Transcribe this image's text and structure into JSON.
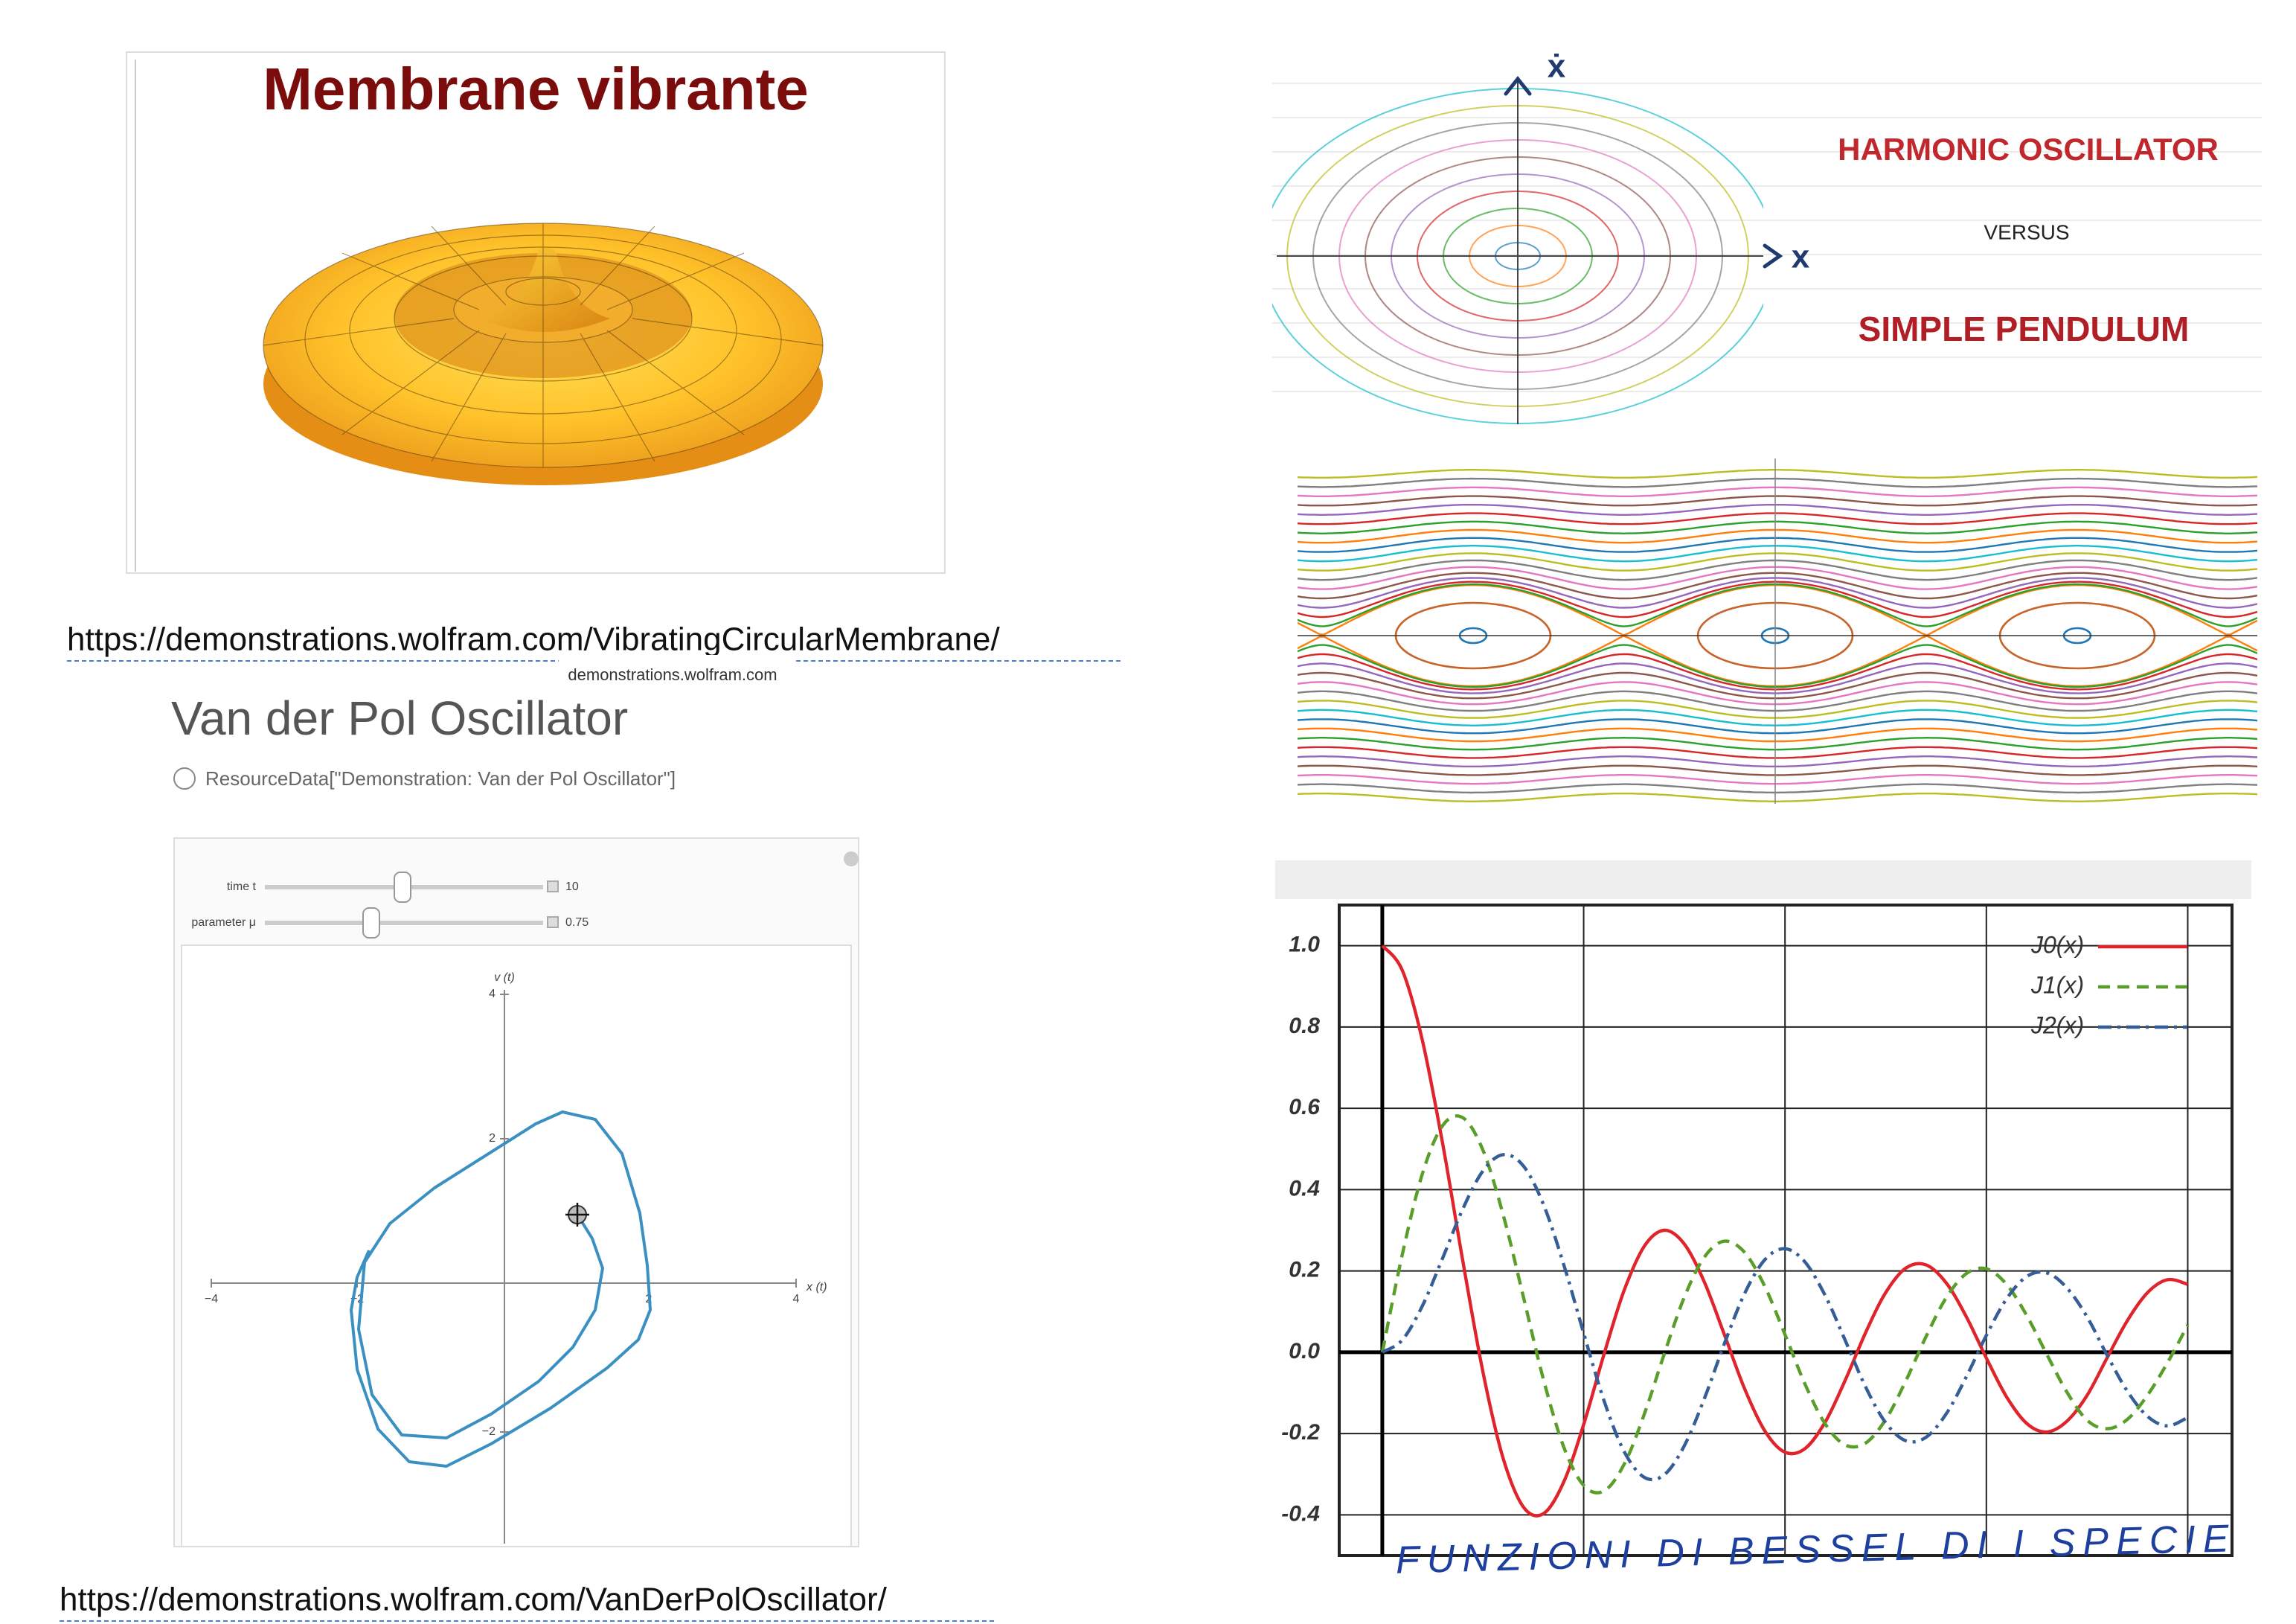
{
  "membrane": {
    "title": "Membrane vibrante",
    "url": "https://demonstrations.wolfram.com/VibratingCircularMembrane/"
  },
  "phase_portrait": {
    "y_label": "ẋ",
    "x_label": "x",
    "title": "HARMONIC OSCILLATOR",
    "connector": "VERSUS",
    "subtitle": "SIMPLE PENDULUM"
  },
  "van_der_pol": {
    "tooltip": "demonstrations.wolfram.com",
    "title": "Van der Pol Oscillator",
    "source": "ResourceData[\"Demonstration: Van der Pol Oscillator\"]",
    "controls": [
      {
        "label": "time t",
        "value": "10"
      },
      {
        "label": "parameter μ",
        "value": "0.75"
      }
    ],
    "plot": {
      "x_label": "x (t)",
      "y_label": "v (t)",
      "x_ticks": [
        "−4",
        "−2",
        "2",
        "4"
      ],
      "y_ticks": [
        "4",
        "2",
        "−2"
      ]
    },
    "url": "https://demonstrations.wolfram.com/VanDerPolOscillator/"
  },
  "chart_data": {
    "type": "line",
    "annotation": "FUNZIONI DI BESSEL DI I SPECIE",
    "x": [
      0,
      0.5,
      1,
      1.5,
      2,
      2.5,
      3,
      3.5,
      4,
      4.5,
      5,
      5.5,
      6,
      6.5,
      7,
      7.5,
      8,
      8.5,
      9,
      9.5,
      10,
      10.5,
      11,
      11.5,
      12,
      12.5,
      13,
      13.5,
      14,
      14.5,
      15,
      15.5,
      16,
      16.5,
      17,
      17.5,
      18,
      18.5,
      19,
      19.5,
      20
    ],
    "series": [
      {
        "name": "J0(x)",
        "color": "#e0242b",
        "linestyle": "solid",
        "values": [
          1,
          0.9385,
          0.7652,
          0.5118,
          0.2239,
          -0.0484,
          -0.2601,
          -0.3801,
          -0.3971,
          -0.3205,
          -0.1776,
          -0.0068,
          0.1506,
          0.2601,
          0.3001,
          0.2663,
          0.1717,
          0.0419,
          -0.0903,
          -0.1939,
          -0.2459,
          -0.2366,
          -0.1712,
          -0.0677,
          0.0477,
          0.1469,
          0.2069,
          0.215,
          0.1711,
          0.0875,
          -0.0142,
          -0.1092,
          -0.1749,
          -0.196,
          -0.1699,
          -0.1061,
          -0.0134,
          0.0775,
          0.1466,
          0.1786,
          0.167
        ]
      },
      {
        "name": "J1(x)",
        "color": "#5a9e2a",
        "linestyle": "dashed",
        "values": [
          0,
          0.2423,
          0.4401,
          0.5579,
          0.5767,
          0.4971,
          0.3391,
          0.1374,
          -0.066,
          -0.2311,
          -0.3276,
          -0.3414,
          -0.2767,
          -0.1538,
          -0.0047,
          0.1352,
          0.2346,
          0.2731,
          0.2453,
          0.1613,
          0.0435,
          -0.0789,
          -0.1768,
          -0.2284,
          -0.2234,
          -0.1655,
          -0.0703,
          0.038,
          0.1334,
          0.1934,
          0.2051,
          0.1672,
          0.0904,
          -0.005,
          -0.0977,
          -0.1672,
          -0.188,
          -0.1655,
          -0.1057,
          -0.0252,
          0.0668
        ]
      },
      {
        "name": "J2(x)",
        "color": "#355d96",
        "linestyle": "dashdot",
        "values": [
          0,
          0.0306,
          0.1149,
          0.2321,
          0.3528,
          0.4461,
          0.4861,
          0.4586,
          0.3641,
          0.2178,
          0.0466,
          -0.1173,
          -0.2429,
          -0.3075,
          -0.3014,
          -0.2303,
          -0.113,
          0.0223,
          0.1448,
          0.2279,
          0.2546,
          0.2216,
          0.139,
          0.028,
          -0.0849,
          -0.1734,
          -0.2177,
          -0.2094,
          -0.152,
          -0.0608,
          0.0415,
          0.1308,
          0.1862,
          0.1954,
          0.1584,
          0.087,
          -0.0075,
          -0.0954,
          -0.1577,
          -0.1812,
          -0.1603
        ]
      }
    ],
    "xlim": [
      -1.07,
      21.1
    ],
    "xticks": [
      0,
      5,
      10,
      15,
      20
    ],
    "ylim": [
      -0.5,
      1.1
    ],
    "yticks": [
      {
        "value": -0.4,
        "label": "-0.4"
      },
      {
        "value": -0.2,
        "label": "-0.2"
      },
      {
        "value": 0,
        "label": "0.0"
      },
      {
        "value": 0.2,
        "label": "0.2"
      },
      {
        "value": 0.4,
        "label": "0.4"
      },
      {
        "value": 0.6,
        "label": "0.6"
      },
      {
        "value": 0.8,
        "label": "0.8"
      },
      {
        "value": 1,
        "label": "1.0"
      }
    ],
    "grid": true,
    "legend": "upper right"
  }
}
